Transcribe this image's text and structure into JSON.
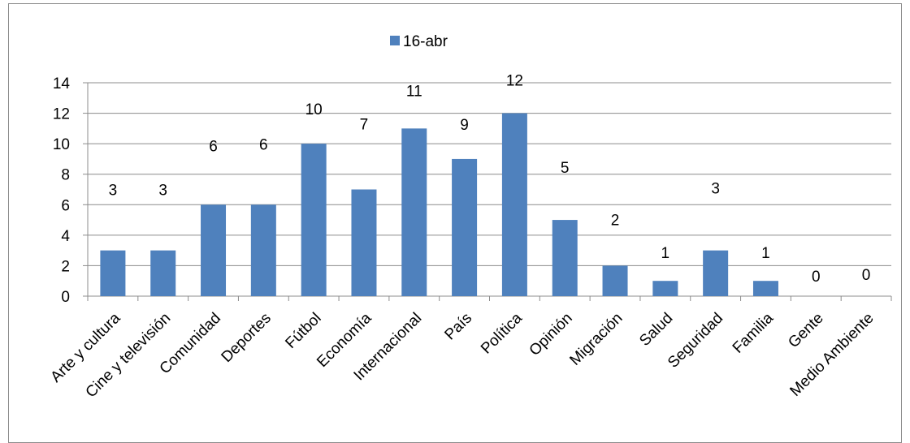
{
  "chart_data": {
    "type": "bar",
    "categories": [
      "Arte y cultura",
      "Cine y televisión",
      "Comunidad",
      "Deportes",
      "Fútbol",
      "Economía",
      "Internacional",
      "País",
      "Política",
      "Opinión",
      "Migración",
      "Salud",
      "Seguridad",
      "Familia",
      "Gente",
      "Medio Ambiente"
    ],
    "series": [
      {
        "name": "16-abr",
        "values": [
          3,
          3,
          6,
          6,
          10,
          7,
          11,
          9,
          12,
          5,
          2,
          1,
          3,
          1,
          0,
          0
        ],
        "color": "#4f81bd"
      }
    ],
    "ylim": [
      0,
      14
    ],
    "yticks": [
      0,
      2,
      4,
      6,
      8,
      10,
      12,
      14
    ],
    "grid": true,
    "legend_position": "top",
    "title": "",
    "xlabel": "",
    "ylabel": ""
  }
}
